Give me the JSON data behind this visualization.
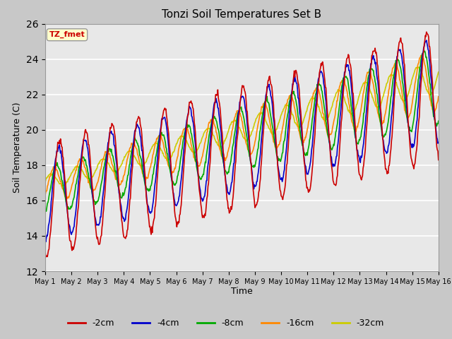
{
  "title": "Tonzi Soil Temperatures Set B",
  "xlabel": "Time",
  "ylabel": "Soil Temperature (C)",
  "ylim": [
    12,
    26
  ],
  "xlim": [
    0,
    360
  ],
  "legend_label": "TZ_fmet",
  "series_colors": {
    "-2cm": "#cc0000",
    "-4cm": "#0000cc",
    "-8cm": "#00aa00",
    "-16cm": "#ff8800",
    "-32cm": "#cccc00"
  },
  "line_width": 1.2,
  "yticks": [
    12,
    14,
    16,
    18,
    20,
    22,
    24,
    26
  ],
  "xtick_labels": [
    "May 1",
    "May 2",
    "May 3",
    "May 4",
    "May 5",
    "May 6",
    "May 7",
    "May 8",
    "May 9",
    "May 10",
    "May 11",
    "May 12",
    "May 13",
    "May 14",
    "May 15",
    "May 16"
  ],
  "xtick_positions": [
    0,
    24,
    48,
    72,
    96,
    120,
    144,
    168,
    192,
    216,
    240,
    264,
    288,
    312,
    336,
    360
  ]
}
